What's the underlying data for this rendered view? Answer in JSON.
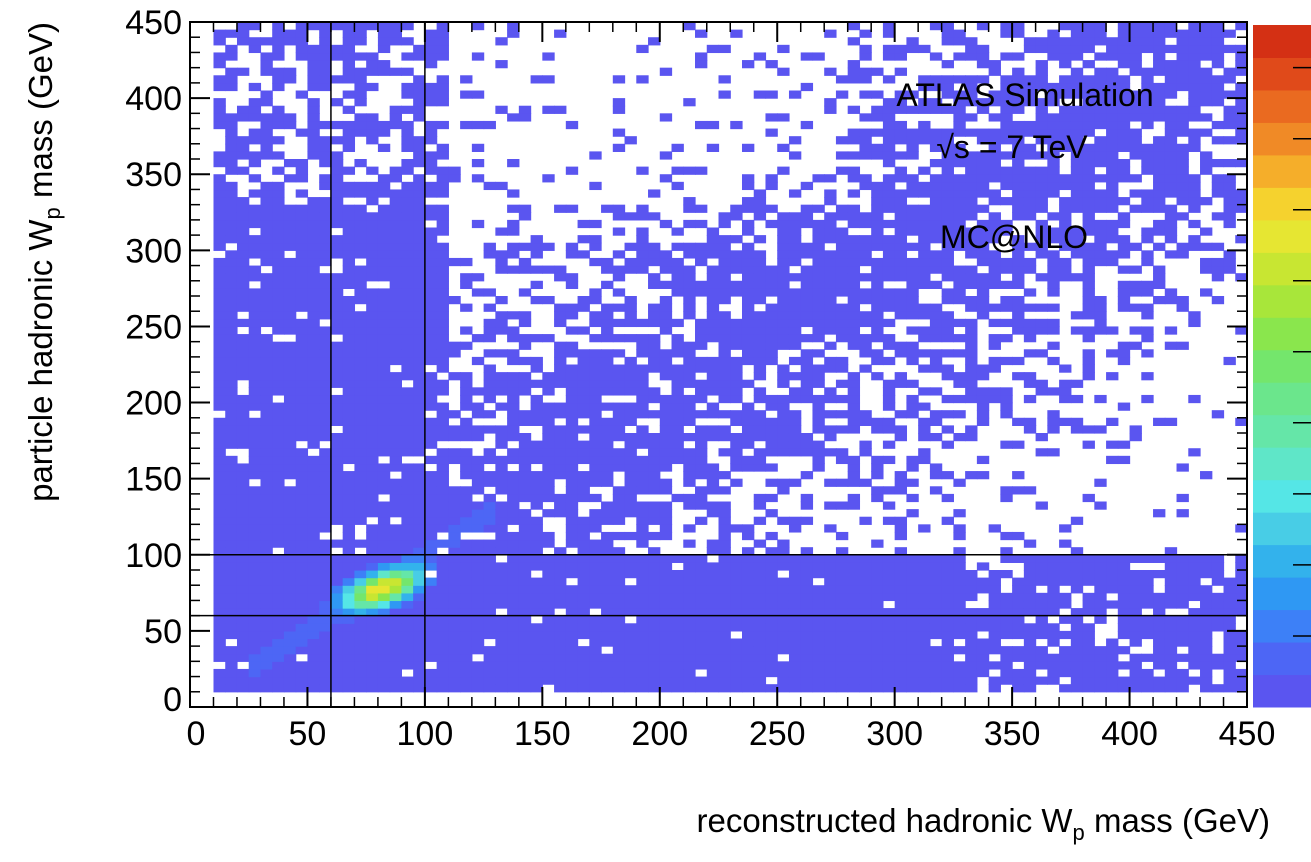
{
  "chart_data": {
    "type": "heatmap",
    "xlabel": {
      "main": "reconstructed hadronic W",
      "sub": "p",
      "suffix": " mass (GeV)"
    },
    "ylabel": {
      "main": "particle hadronic W",
      "sub": "p",
      "suffix": " mass (GeV)"
    },
    "xlim": [
      0,
      450
    ],
    "ylim": [
      0,
      450
    ],
    "x_ticks": [
      "0",
      "50",
      "100",
      "150",
      "200",
      "250",
      "300",
      "350",
      "400",
      "450"
    ],
    "y_ticks": [
      "0",
      "50",
      "100",
      "150",
      "200",
      "250",
      "300",
      "350",
      "400",
      "450"
    ],
    "reference_lines": {
      "x": [
        60,
        100
      ],
      "y": [
        60,
        100
      ]
    },
    "annotations": [
      "ATLAS Simulation",
      "√s = 7 TeV",
      "MC@NLO"
    ],
    "peak": {
      "x": 82,
      "y": 78
    },
    "fill_color": "#5a55f0",
    "palette": [
      "#5a55f0",
      "#4d66f5",
      "#3d80f7",
      "#2f98f3",
      "#33b2ec",
      "#48cde6",
      "#55e6e6",
      "#5fe6c8",
      "#65e6a8",
      "#6be68c",
      "#74e66c",
      "#8ae64d",
      "#a8e63a",
      "#c8e632",
      "#e6e632",
      "#f5d22e",
      "#f5ae2a",
      "#f08a26",
      "#ea6a20",
      "#e04a1a",
      "#d43014"
    ]
  }
}
